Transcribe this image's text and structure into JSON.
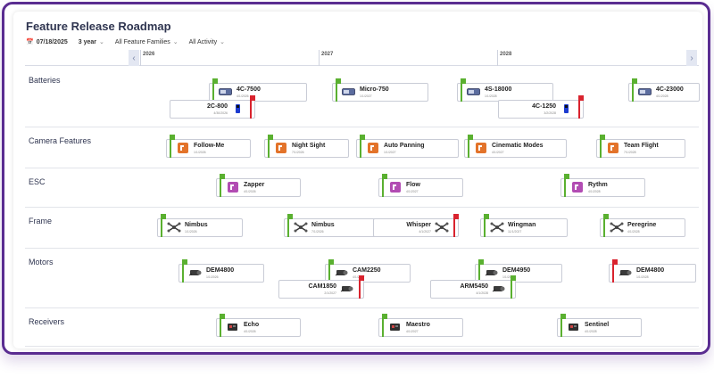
{
  "title": "Feature Release Roadmap",
  "filters": [
    {
      "icon": "calendar-icon",
      "label": "07/18/2025",
      "bold": true
    },
    {
      "label": "3 year"
    },
    {
      "label": "All Feature Families"
    },
    {
      "label": "All Activity"
    }
  ],
  "years": [
    "2026",
    "2027",
    "2028"
  ],
  "rows": [
    {
      "label": "Batteries",
      "items": [
        {
          "name": "4C-7500",
          "date": "4/1/2026",
          "icon": "battery-icon",
          "flag": "green"
        },
        {
          "name": "2C-800",
          "date": "4/30/2026",
          "icon": "battery-small-icon",
          "flag": "red"
        },
        {
          "name": "Micro-750",
          "date": "1/1/2027",
          "icon": "battery-icon",
          "flag": "green"
        },
        {
          "name": "4S-18000",
          "date": "1/1/2028",
          "icon": "battery-icon",
          "flag": "green"
        },
        {
          "name": "4C-1250",
          "date": "3/2/2028",
          "icon": "battery-small-icon",
          "flag": "red"
        },
        {
          "name": "4C-23000",
          "date": "4/1/2028",
          "icon": "battery-icon",
          "flag": "green"
        }
      ]
    },
    {
      "label": "Camera Features",
      "items": [
        {
          "name": "Follow-Me",
          "date": "1/1/2026",
          "icon": "camera-feature-icon",
          "flag": "green"
        },
        {
          "name": "Night Sight",
          "date": "7/1/2026",
          "icon": "camera-feature-icon",
          "flag": "green"
        },
        {
          "name": "Auto Panning",
          "date": "1/1/2027",
          "icon": "camera-feature-icon",
          "flag": "green"
        },
        {
          "name": "Cinematic Modes",
          "date": "4/1/2027",
          "icon": "camera-feature-icon",
          "flag": "green"
        },
        {
          "name": "Team Flight",
          "date": "7/1/2028",
          "icon": "camera-feature-icon",
          "flag": "green"
        }
      ]
    },
    {
      "label": "ESC",
      "items": [
        {
          "name": "Zapper",
          "date": "4/1/2026",
          "icon": "esc-icon",
          "flag": "green"
        },
        {
          "name": "Flow",
          "date": "4/1/2027",
          "icon": "esc-icon",
          "flag": "green"
        },
        {
          "name": "Rythm",
          "date": "4/1/2028",
          "icon": "esc-icon",
          "flag": "green"
        }
      ]
    },
    {
      "label": "Frame",
      "items": [
        {
          "name": "Nimbus",
          "date": "1/1/2026",
          "icon": "drone-frame-icon",
          "flag": "green"
        },
        {
          "name": "Nimbus",
          "date": "7/1/2026",
          "icon": "drone-frame-icon",
          "flag": "green"
        },
        {
          "name": "Whisper",
          "date": "4/1/2027",
          "icon": "drone-frame-icon",
          "flag": "red"
        },
        {
          "name": "Wingman",
          "date": "11/1/2027",
          "icon": "drone-frame-icon",
          "flag": "green"
        },
        {
          "name": "Peregrine",
          "date": "4/1/2028",
          "icon": "drone-frame-icon",
          "flag": "green"
        }
      ]
    },
    {
      "label": "Motors",
      "items": [
        {
          "name": "DEM4800",
          "date": "1/1/2026",
          "icon": "motor-icon",
          "flag": "green"
        },
        {
          "name": "CAM2250",
          "date": "4/1/2027",
          "icon": "motor-icon",
          "flag": "green"
        },
        {
          "name": "CAM1850",
          "date": "2/1/2027",
          "icon": "motor-icon",
          "flag": "red"
        },
        {
          "name": "DEM4950",
          "date": "1/1/2028",
          "icon": "motor-icon",
          "flag": "green"
        },
        {
          "name": "DEM4800",
          "date": "1/1/2028",
          "icon": "motor-icon",
          "flag": "red"
        },
        {
          "name": "ARM5450",
          "date": "4/1/2028",
          "icon": "motor-icon",
          "flag": "green"
        }
      ]
    },
    {
      "label": "Receivers",
      "items": [
        {
          "name": "Echo",
          "date": "4/1/2026",
          "icon": "receiver-icon",
          "flag": "green"
        },
        {
          "name": "Maestro",
          "date": "4/1/2027",
          "icon": "receiver-icon",
          "flag": "green"
        },
        {
          "name": "Sentinel",
          "date": "4/1/2028",
          "icon": "receiver-icon",
          "flag": "green"
        }
      ]
    }
  ]
}
